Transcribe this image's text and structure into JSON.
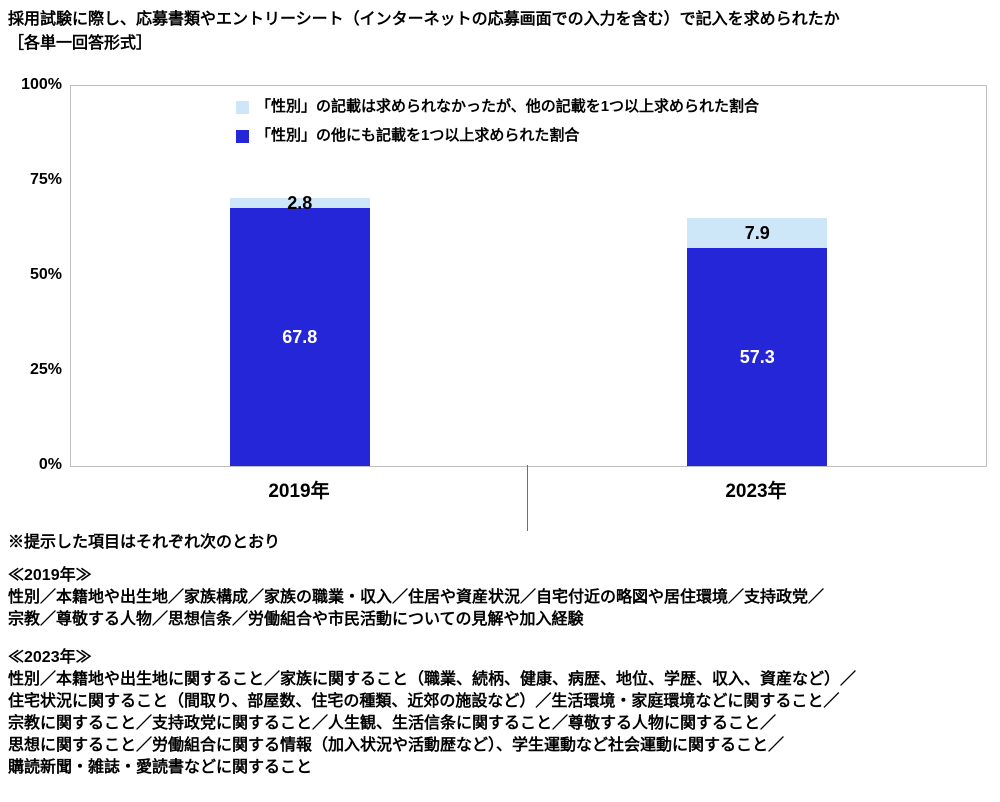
{
  "header": {
    "title": "採用試験に際し、応募書類やエントリーシート（インターネットの応募画面での入力を含む）で記入を求められたか",
    "subtitle": "［各単一回答形式］"
  },
  "chart_data": {
    "type": "bar",
    "stacked": true,
    "title": "採用試験に際し、応募書類やエントリーシートで記入を求められたか",
    "categories": [
      "2019年",
      "2023年"
    ],
    "series": [
      {
        "name": "「性別」の他にも記載を1つ以上求められた割合",
        "values": [
          67.8,
          57.3
        ],
        "color": "#2626D9",
        "label_color": "#FFFFFF"
      },
      {
        "name": "「性別」の記載は求められなかったが、他の記載を1つ以上求められた割合",
        "values": [
          2.8,
          7.9
        ],
        "color": "#CDE7F8",
        "label_color": "#000000"
      }
    ],
    "ylim": [
      0,
      100
    ],
    "yticks": [
      "100%",
      "75%",
      "50%",
      "25%",
      "0%"
    ],
    "legend_order": [
      1,
      0
    ],
    "grid": false,
    "legend_position": "top-inside"
  },
  "notes": {
    "intro": "※提示した項目はそれぞれ次のとおり",
    "y2019": {
      "heading": "≪2019年≫",
      "lines": [
        "性別／本籍地や出生地／家族構成／家族の職業・収入／住居や資産状況／自宅付近の略図や居住環境／支持政党／",
        "宗教／尊敬する人物／思想信条／労働組合や市民活動についての見解や加入経験"
      ]
    },
    "y2023": {
      "heading": "≪2023年≫",
      "lines": [
        "性別／本籍地や出生地に関すること／家族に関すること（職業、続柄、健康、病歴、地位、学歴、収入、資産など）／",
        "住宅状況に関すること（間取り、部屋数、住宅の種類、近郊の施設など）／生活環境・家庭環境などに関すること／",
        "宗教に関すること／支持政党に関すること／人生観、生活信条に関すること／尊敬する人物に関すること／",
        "思想に関すること／労働組合に関する情報（加入状況や活動歴など）、学生運動など社会運動に関すること／",
        "購読新聞・雑誌・愛読書などに関すること"
      ]
    }
  }
}
